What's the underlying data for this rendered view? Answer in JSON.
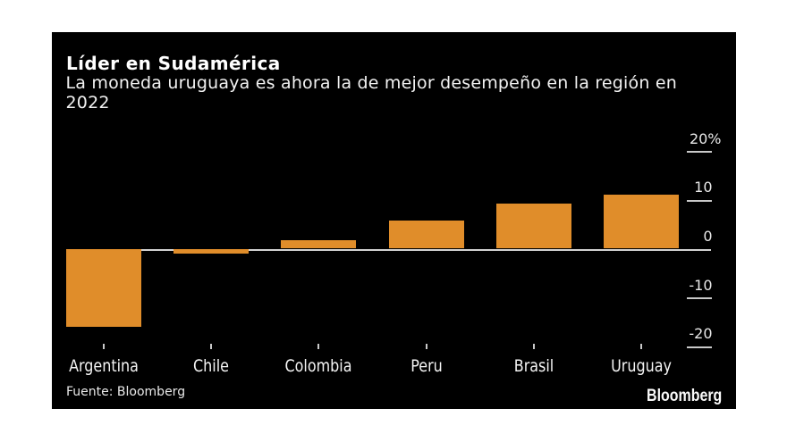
{
  "chart": {
    "title": "Líder en Sudamérica",
    "subtitle": "La moneda uruguaya es ahora la de mejor desempeño en la región en 2022",
    "source": "Fuente: Bloomberg",
    "brand": "Bloomberg"
  },
  "colors": {
    "page_background": "#ffffff",
    "chart_background": "#000000",
    "bar": "#e08d2a",
    "axis_line": "#d2d2d2",
    "tick": "#c9c9c9",
    "text": "#ffffff"
  },
  "chart_data": {
    "type": "bar",
    "title": "Líder en Sudamérica",
    "subtitle": "La moneda uruguaya es ahora la de mejor desempeño en la región en 2022",
    "categories": [
      "Argentina",
      "Chile",
      "Colombia",
      "Peru",
      "Brasil",
      "Uruguay"
    ],
    "values": [
      -15.9,
      -0.9,
      2.0,
      6.0,
      9.4,
      11.2
    ],
    "xlabel": "",
    "ylabel": "%",
    "ylim": [
      -24,
      22
    ],
    "yticks": [
      20,
      10,
      0,
      -10,
      -20
    ],
    "ytick_labels": [
      "20%",
      "10",
      "0",
      "-10",
      "-20"
    ],
    "unit_suffix": "%",
    "grid": "right-dashes",
    "legend": "none",
    "source": "Fuente: Bloomberg",
    "brand": "Bloomberg"
  }
}
